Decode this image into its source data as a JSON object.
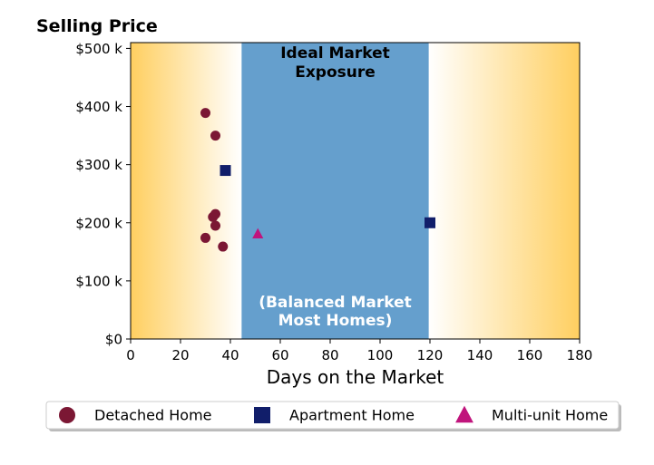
{
  "chart_data": {
    "type": "scatter",
    "title": "Selling Price",
    "xlabel": "Days on the Market",
    "ylabel": "",
    "xlim": [
      0,
      180
    ],
    "ylim": [
      0,
      510000
    ],
    "x_ticks": [
      {
        "value": 0,
        "label": "0"
      },
      {
        "value": 20,
        "label": "20"
      },
      {
        "value": 40,
        "label": "40"
      },
      {
        "value": 60,
        "label": "60"
      },
      {
        "value": 80,
        "label": "80"
      },
      {
        "value": 100,
        "label": "100"
      },
      {
        "value": 120,
        "label": "120"
      },
      {
        "value": 140,
        "label": "140"
      },
      {
        "value": 160,
        "label": "160"
      },
      {
        "value": 180,
        "label": "180"
      }
    ],
    "y_ticks": [
      {
        "value": 0,
        "label": "$0"
      },
      {
        "value": 100000,
        "label": "$100 k"
      },
      {
        "value": 200000,
        "label": "$200 k"
      },
      {
        "value": 300000,
        "label": "$300 k"
      },
      {
        "value": 400000,
        "label": "$400 k"
      },
      {
        "value": 500000,
        "label": "$500 k"
      }
    ],
    "grid": false,
    "legend_placement": "bottom",
    "ideal_band": {
      "x_start": 44.5,
      "x_end": 119.5,
      "color": "#659fcd",
      "label_top": "Ideal Market Exposure",
      "label_bottom": "(Balanced Market Most Homes)"
    },
    "background_gradient_color": "#ffcf60",
    "series": [
      {
        "name": "Detached Home",
        "marker": "circle",
        "color": "#7b1734",
        "points": [
          {
            "x": 30,
            "y": 389000
          },
          {
            "x": 34,
            "y": 350000
          },
          {
            "x": 33,
            "y": 210000
          },
          {
            "x": 34,
            "y": 215000
          },
          {
            "x": 34,
            "y": 195000
          },
          {
            "x": 30,
            "y": 174000
          },
          {
            "x": 37,
            "y": 159000
          }
        ]
      },
      {
        "name": "Apartment Home",
        "marker": "square",
        "color": "#111e6a",
        "points": [
          {
            "x": 38,
            "y": 290000
          },
          {
            "x": 120,
            "y": 200000
          }
        ]
      },
      {
        "name": "Multi-unit Home",
        "marker": "triangle",
        "color": "#c0147c",
        "points": [
          {
            "x": 51,
            "y": 181000
          }
        ]
      }
    ]
  }
}
